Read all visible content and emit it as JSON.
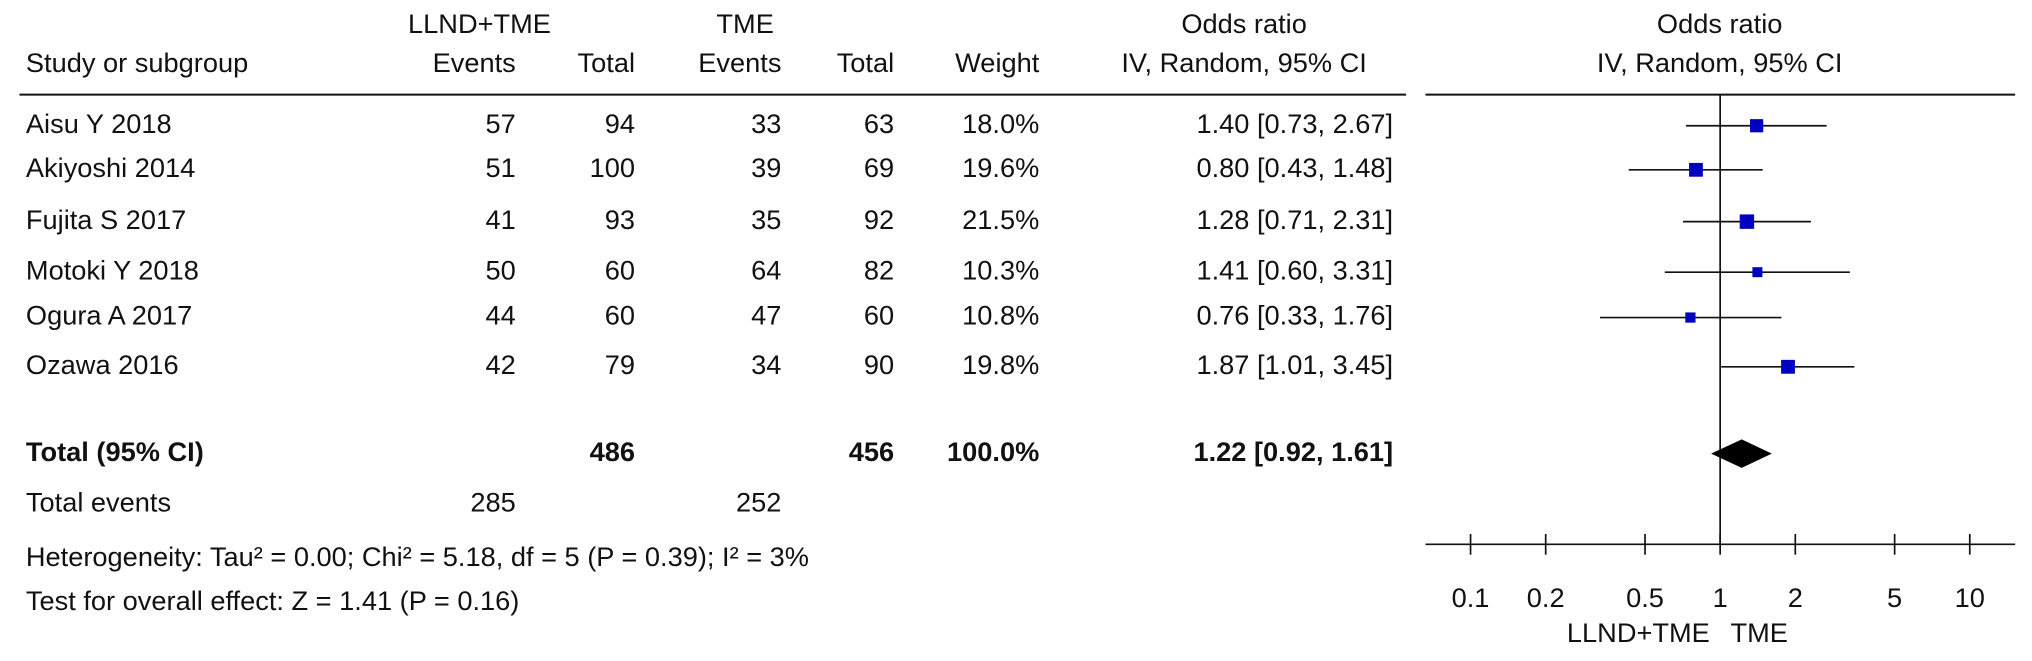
{
  "chart_data": {
    "type": "forest",
    "header": {
      "study": "Study or subgroup",
      "group1": "LLND+TME",
      "group2": "TME",
      "events": "Events",
      "total": "Total",
      "weight": "Weight",
      "effect": "Odds ratio",
      "method": "IV, Random, 95% CI"
    },
    "categories": [
      "Aisu Y 2018",
      "Akiyoshi 2014",
      "Fujita S 2017",
      "Motoki Y 2018",
      "Ogura A 2017",
      "Ozawa 2016"
    ],
    "events1": [
      57,
      51,
      41,
      50,
      44,
      42
    ],
    "total1": [
      94,
      100,
      93,
      60,
      60,
      79
    ],
    "events2": [
      33,
      39,
      35,
      64,
      47,
      34
    ],
    "total2": [
      63,
      69,
      92,
      82,
      60,
      90
    ],
    "weights": [
      18.0,
      19.6,
      21.5,
      10.3,
      10.8,
      19.8
    ],
    "weight_labels": [
      "18.0%",
      "19.6%",
      "21.5%",
      "10.3%",
      "10.8%",
      "19.8%"
    ],
    "values": [
      1.4,
      0.8,
      1.28,
      1.41,
      0.76,
      1.87
    ],
    "ci_low": [
      0.73,
      0.43,
      0.71,
      0.6,
      0.33,
      1.01
    ],
    "ci_high": [
      2.67,
      1.48,
      2.31,
      3.31,
      1.76,
      3.45
    ],
    "value_labels": [
      "1.40 [0.73, 2.67]",
      "0.80 [0.43, 1.48]",
      "1.28 [0.71, 2.31]",
      "1.41 [0.60, 3.31]",
      "0.76 [0.33, 1.76]",
      "1.87 [1.01, 3.45]"
    ],
    "total": {
      "label": "Total (95% CI)",
      "total1": 486,
      "total2": 456,
      "weight": 100.0,
      "weight_label": "100.0%",
      "value": 1.22,
      "ci": [
        0.92,
        1.61
      ],
      "value_label": "1.22 [0.92, 1.61]"
    },
    "total_events": {
      "label": "Total events",
      "events1": 285,
      "events2": 252
    },
    "heterogeneity": "Heterogeneity: Tau² = 0.00; Chi² = 5.18, df = 5 (P = 0.39); I² = 3%",
    "overall_effect": "Test for overall effect: Z = 1.41 (P = 0.16)",
    "xscale": "log",
    "xlim": [
      0.066,
      15.2
    ],
    "xticks": [
      0.1,
      0.2,
      0.5,
      1,
      2,
      5,
      10
    ],
    "xlabel_left": "LLND+TME",
    "xlabel_right": "TME",
    "color": "#0000c0"
  }
}
